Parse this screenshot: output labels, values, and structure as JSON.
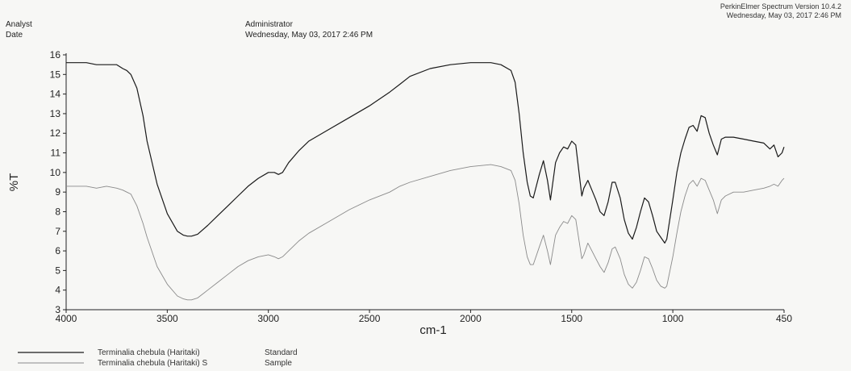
{
  "header": {
    "analyst_label": "Analyst",
    "date_label": "Date",
    "analyst_value": "Administrator",
    "date_value": "Wednesday, May 03, 2017 2:46 PM",
    "software": "PerkinElmer Spectrum Version 10.4.2",
    "software_date": "Wednesday, May 03, 2017 2:46 PM"
  },
  "colors": {
    "standard": "#1a1a1a",
    "sample": "#8a8a8a"
  },
  "chart_data": {
    "type": "line",
    "title": "",
    "xlabel": "cm-1",
    "ylabel": "%T",
    "xlim": [
      4000,
      450
    ],
    "ylim": [
      3,
      16
    ],
    "x_reversed": true,
    "x_ticks": [
      4000,
      3500,
      3000,
      2500,
      2000,
      1500,
      1000,
      450
    ],
    "x_tick_labels": [
      "4000",
      "3500",
      "3000",
      "2500",
      "2000",
      "1500",
      "1000",
      "450"
    ],
    "y_ticks": [
      3,
      4,
      5,
      6,
      7,
      8,
      9,
      10,
      11,
      12,
      13,
      14,
      15,
      16
    ],
    "y_tick_labels": [
      "3",
      "4",
      "5",
      "6",
      "7",
      "8",
      "9",
      "10",
      "11",
      "12",
      "13",
      "14",
      "15",
      "16"
    ],
    "grid": false,
    "legend_position": "bottom-left",
    "series": [
      {
        "name": "Terminalia chebula (Haritaki)",
        "status": "Standard",
        "x": [
          4000,
          3900,
          3850,
          3800,
          3750,
          3720,
          3700,
          3680,
          3650,
          3620,
          3600,
          3550,
          3500,
          3450,
          3420,
          3400,
          3380,
          3350,
          3300,
          3250,
          3200,
          3150,
          3100,
          3050,
          3000,
          2970,
          2950,
          2930,
          2900,
          2850,
          2800,
          2700,
          2600,
          2500,
          2400,
          2350,
          2300,
          2200,
          2100,
          2000,
          1900,
          1850,
          1800,
          1780,
          1760,
          1740,
          1720,
          1705,
          1690,
          1660,
          1640,
          1620,
          1605,
          1580,
          1560,
          1540,
          1520,
          1500,
          1480,
          1450,
          1440,
          1420,
          1400,
          1380,
          1360,
          1340,
          1320,
          1300,
          1285,
          1260,
          1240,
          1220,
          1200,
          1180,
          1160,
          1140,
          1120,
          1100,
          1080,
          1060,
          1040,
          1030,
          1000,
          980,
          960,
          940,
          920,
          900,
          880,
          860,
          840,
          820,
          800,
          780,
          760,
          740,
          700,
          650,
          600,
          550,
          520,
          500,
          480,
          460,
          450
        ],
        "y": [
          15.6,
          15.6,
          15.5,
          15.5,
          15.5,
          15.3,
          15.2,
          15.0,
          14.3,
          12.9,
          11.6,
          9.4,
          7.9,
          7.0,
          6.8,
          6.75,
          6.75,
          6.85,
          7.3,
          7.8,
          8.3,
          8.8,
          9.3,
          9.7,
          10.0,
          10.0,
          9.9,
          10.0,
          10.5,
          11.1,
          11.6,
          12.2,
          12.8,
          13.4,
          14.1,
          14.5,
          14.9,
          15.3,
          15.5,
          15.6,
          15.6,
          15.5,
          15.2,
          14.6,
          13.0,
          11.0,
          9.5,
          8.8,
          8.7,
          9.9,
          10.6,
          9.6,
          8.6,
          10.5,
          11.0,
          11.3,
          11.2,
          11.6,
          11.4,
          8.8,
          9.2,
          9.6,
          9.1,
          8.6,
          8.0,
          7.8,
          8.5,
          9.5,
          9.5,
          8.7,
          7.6,
          6.9,
          6.6,
          7.2,
          8.0,
          8.7,
          8.5,
          7.8,
          7.0,
          6.7,
          6.4,
          6.6,
          8.6,
          10.0,
          11.0,
          11.7,
          12.3,
          12.4,
          12.1,
          12.9,
          12.8,
          12.0,
          11.4,
          10.9,
          11.7,
          11.8,
          11.8,
          11.7,
          11.6,
          11.5,
          11.2,
          11.4,
          10.8,
          11.0,
          11.3
        ]
      },
      {
        "name": "Terminalia chebula (Haritaki) S",
        "status": "Sample",
        "x": [
          4000,
          3900,
          3850,
          3800,
          3750,
          3720,
          3700,
          3680,
          3650,
          3620,
          3600,
          3550,
          3500,
          3450,
          3420,
          3400,
          3380,
          3350,
          3300,
          3250,
          3200,
          3150,
          3100,
          3050,
          3000,
          2970,
          2950,
          2930,
          2900,
          2850,
          2800,
          2700,
          2600,
          2500,
          2400,
          2350,
          2300,
          2200,
          2100,
          2000,
          1900,
          1850,
          1800,
          1780,
          1760,
          1740,
          1720,
          1705,
          1690,
          1660,
          1640,
          1620,
          1605,
          1580,
          1560,
          1540,
          1520,
          1500,
          1480,
          1450,
          1440,
          1420,
          1400,
          1380,
          1360,
          1340,
          1320,
          1300,
          1285,
          1260,
          1240,
          1220,
          1200,
          1180,
          1160,
          1140,
          1120,
          1100,
          1080,
          1060,
          1040,
          1030,
          1000,
          980,
          960,
          940,
          920,
          900,
          880,
          860,
          840,
          820,
          800,
          780,
          760,
          740,
          700,
          650,
          600,
          550,
          520,
          500,
          480,
          460,
          450
        ],
        "y": [
          9.3,
          9.3,
          9.2,
          9.3,
          9.2,
          9.1,
          9.0,
          8.9,
          8.3,
          7.4,
          6.7,
          5.2,
          4.3,
          3.7,
          3.55,
          3.5,
          3.5,
          3.6,
          4.0,
          4.4,
          4.8,
          5.2,
          5.5,
          5.7,
          5.8,
          5.7,
          5.6,
          5.7,
          6.0,
          6.5,
          6.9,
          7.5,
          8.1,
          8.6,
          9.0,
          9.3,
          9.5,
          9.8,
          10.1,
          10.3,
          10.4,
          10.3,
          10.1,
          9.6,
          8.4,
          6.8,
          5.7,
          5.3,
          5.3,
          6.2,
          6.8,
          6.0,
          5.3,
          6.8,
          7.2,
          7.5,
          7.4,
          7.8,
          7.6,
          5.6,
          5.8,
          6.4,
          6.0,
          5.6,
          5.2,
          4.9,
          5.4,
          6.1,
          6.2,
          5.6,
          4.8,
          4.3,
          4.1,
          4.4,
          5.0,
          5.7,
          5.6,
          5.1,
          4.5,
          4.2,
          4.1,
          4.2,
          5.7,
          6.9,
          8.0,
          8.8,
          9.4,
          9.6,
          9.3,
          9.7,
          9.6,
          9.1,
          8.6,
          7.9,
          8.6,
          8.8,
          9.0,
          9.0,
          9.1,
          9.2,
          9.3,
          9.4,
          9.3,
          9.6,
          9.7
        ]
      }
    ]
  }
}
